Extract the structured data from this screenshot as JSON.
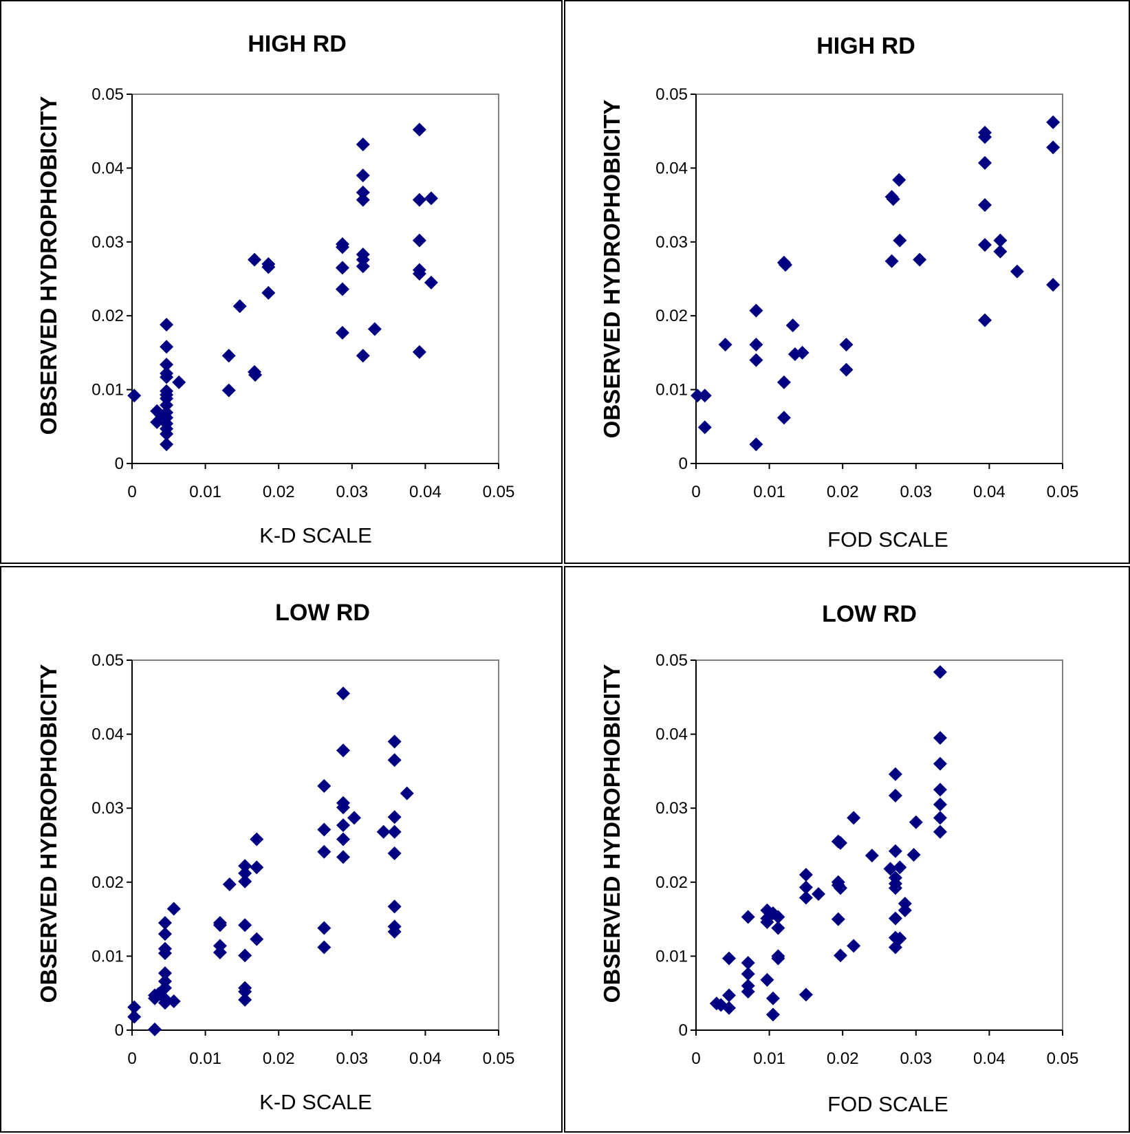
{
  "chart_data": [
    {
      "type": "scatter",
      "title": "HIGH RD",
      "xlabel": "K-D SCALE",
      "ylabel": "OBSERVED HYDROPHOBICITY",
      "xlim": [
        0,
        0.05
      ],
      "ylim": [
        0,
        0.05
      ],
      "xticks": [
        "0",
        "0.01",
        "0.02",
        "0.03",
        "0.04",
        "0.05"
      ],
      "yticks": [
        "0",
        "0.01",
        "0.02",
        "0.03",
        "0.04",
        "0.05"
      ],
      "marker": "diamond",
      "color": "#000080",
      "grid": false,
      "points": [
        [
          0.0003,
          0.0092
        ],
        [
          0.0034,
          0.0071
        ],
        [
          0.0034,
          0.0056
        ],
        [
          0.0039,
          0.0066
        ],
        [
          0.0047,
          0.0188
        ],
        [
          0.0047,
          0.0158
        ],
        [
          0.0047,
          0.0134
        ],
        [
          0.0047,
          0.0122
        ],
        [
          0.0047,
          0.0117
        ],
        [
          0.0047,
          0.0098
        ],
        [
          0.0047,
          0.0093
        ],
        [
          0.0047,
          0.0088
        ],
        [
          0.0047,
          0.0079
        ],
        [
          0.0047,
          0.0069
        ],
        [
          0.0047,
          0.0062
        ],
        [
          0.0047,
          0.0054
        ],
        [
          0.0047,
          0.0047
        ],
        [
          0.0047,
          0.004
        ],
        [
          0.0047,
          0.0026
        ],
        [
          0.0064,
          0.011
        ],
        [
          0.0132,
          0.0146
        ],
        [
          0.0132,
          0.0099
        ],
        [
          0.0147,
          0.0213
        ],
        [
          0.0167,
          0.0276
        ],
        [
          0.0167,
          0.0124
        ],
        [
          0.0168,
          0.012
        ],
        [
          0.0186,
          0.027
        ],
        [
          0.0186,
          0.0266
        ],
        [
          0.0186,
          0.0231
        ],
        [
          0.0287,
          0.0297
        ],
        [
          0.0287,
          0.0293
        ],
        [
          0.0287,
          0.0265
        ],
        [
          0.0287,
          0.0236
        ],
        [
          0.0287,
          0.0177
        ],
        [
          0.0315,
          0.0432
        ],
        [
          0.0315,
          0.039
        ],
        [
          0.0315,
          0.0367
        ],
        [
          0.0315,
          0.0357
        ],
        [
          0.0315,
          0.0283
        ],
        [
          0.0315,
          0.0276
        ],
        [
          0.0315,
          0.0267
        ],
        [
          0.0315,
          0.0146
        ],
        [
          0.0331,
          0.0182
        ],
        [
          0.0392,
          0.0452
        ],
        [
          0.0392,
          0.0357
        ],
        [
          0.0392,
          0.0302
        ],
        [
          0.0392,
          0.0262
        ],
        [
          0.0392,
          0.0257
        ],
        [
          0.0392,
          0.0151
        ],
        [
          0.0408,
          0.0359
        ],
        [
          0.0408,
          0.0245
        ]
      ]
    },
    {
      "type": "scatter",
      "title": "HIGH RD",
      "xlabel": "FOD SCALE",
      "ylabel": "OBSERVED HYDROPHOBICITY",
      "xlim": [
        0,
        0.05
      ],
      "ylim": [
        0,
        0.05
      ],
      "xticks": [
        "0",
        "0.01",
        "0.02",
        "0.03",
        "0.04",
        "0.05"
      ],
      "yticks": [
        "0",
        "0.01",
        "0.02",
        "0.03",
        "0.04",
        "0.05"
      ],
      "marker": "diamond",
      "color": "#000080",
      "grid": false,
      "points": [
        [
          0.0002,
          0.0092
        ],
        [
          0.0012,
          0.0092
        ],
        [
          0.0012,
          0.0049
        ],
        [
          0.004,
          0.0161
        ],
        [
          0.0082,
          0.0207
        ],
        [
          0.0082,
          0.0161
        ],
        [
          0.0082,
          0.014
        ],
        [
          0.0082,
          0.0026
        ],
        [
          0.012,
          0.0272
        ],
        [
          0.0122,
          0.0269
        ],
        [
          0.012,
          0.011
        ],
        [
          0.012,
          0.0062
        ],
        [
          0.0132,
          0.0187
        ],
        [
          0.0135,
          0.0148
        ],
        [
          0.0145,
          0.015
        ],
        [
          0.0205,
          0.0161
        ],
        [
          0.0205,
          0.0127
        ],
        [
          0.0267,
          0.0361
        ],
        [
          0.0269,
          0.0358
        ],
        [
          0.0277,
          0.0384
        ],
        [
          0.0278,
          0.0302
        ],
        [
          0.0267,
          0.0274
        ],
        [
          0.0305,
          0.0276
        ],
        [
          0.0394,
          0.0448
        ],
        [
          0.0394,
          0.0442
        ],
        [
          0.0394,
          0.0407
        ],
        [
          0.0394,
          0.035
        ],
        [
          0.0394,
          0.0296
        ],
        [
          0.0394,
          0.0194
        ],
        [
          0.0415,
          0.0302
        ],
        [
          0.0415,
          0.0287
        ],
        [
          0.0438,
          0.026
        ],
        [
          0.0487,
          0.0462
        ],
        [
          0.0487,
          0.0428
        ],
        [
          0.0487,
          0.0242
        ]
      ]
    },
    {
      "type": "scatter",
      "title": "LOW RD",
      "xlabel": "K-D SCALE",
      "ylabel": "OBSERVED HYDROPHOBICITY",
      "xlim": [
        0,
        0.05
      ],
      "ylim": [
        0,
        0.05
      ],
      "xticks": [
        "0",
        "0.01",
        "0.02",
        "0.03",
        "0.04",
        "0.05"
      ],
      "yticks": [
        "0",
        "0.01",
        "0.02",
        "0.03",
        "0.04",
        "0.05"
      ],
      "marker": "diamond",
      "color": "#000080",
      "grid": false,
      "points": [
        [
          0.0003,
          0.0031
        ],
        [
          0.0003,
          0.0018
        ],
        [
          0.0031,
          0.0047
        ],
        [
          0.0031,
          0.0043
        ],
        [
          0.0031,
          0.0001
        ],
        [
          0.0036,
          0.0049
        ],
        [
          0.0045,
          0.0145
        ],
        [
          0.0045,
          0.013
        ],
        [
          0.0045,
          0.011
        ],
        [
          0.0045,
          0.0104
        ],
        [
          0.0045,
          0.0077
        ],
        [
          0.0045,
          0.0066
        ],
        [
          0.0045,
          0.0057
        ],
        [
          0.0045,
          0.0042
        ],
        [
          0.0045,
          0.0037
        ],
        [
          0.0057,
          0.0164
        ],
        [
          0.0057,
          0.0039
        ],
        [
          0.012,
          0.0145
        ],
        [
          0.012,
          0.0142
        ],
        [
          0.012,
          0.0114
        ],
        [
          0.012,
          0.0105
        ],
        [
          0.0133,
          0.0197
        ],
        [
          0.0154,
          0.0222
        ],
        [
          0.0154,
          0.0212
        ],
        [
          0.0154,
          0.0201
        ],
        [
          0.0154,
          0.0142
        ],
        [
          0.0154,
          0.0101
        ],
        [
          0.0154,
          0.0057
        ],
        [
          0.0154,
          0.0052
        ],
        [
          0.0154,
          0.0041
        ],
        [
          0.017,
          0.0258
        ],
        [
          0.017,
          0.022
        ],
        [
          0.017,
          0.0123
        ],
        [
          0.0262,
          0.033
        ],
        [
          0.0262,
          0.0271
        ],
        [
          0.0262,
          0.0241
        ],
        [
          0.0262,
          0.0138
        ],
        [
          0.0262,
          0.0112
        ],
        [
          0.0288,
          0.0455
        ],
        [
          0.0288,
          0.0378
        ],
        [
          0.0288,
          0.0307
        ],
        [
          0.0288,
          0.0301
        ],
        [
          0.0288,
          0.0277
        ],
        [
          0.0288,
          0.0258
        ],
        [
          0.0288,
          0.0234
        ],
        [
          0.0303,
          0.0287
        ],
        [
          0.0343,
          0.0268
        ],
        [
          0.0358,
          0.039
        ],
        [
          0.0358,
          0.0365
        ],
        [
          0.0358,
          0.0288
        ],
        [
          0.0358,
          0.0268
        ],
        [
          0.0358,
          0.0239
        ],
        [
          0.0358,
          0.0167
        ],
        [
          0.0358,
          0.014
        ],
        [
          0.0358,
          0.0133
        ],
        [
          0.0375,
          0.032
        ]
      ]
    },
    {
      "type": "scatter",
      "title": "LOW RD",
      "xlabel": "FOD SCALE",
      "ylabel": "OBSERVED HYDROPHOBICITY",
      "xlim": [
        0,
        0.05
      ],
      "ylim": [
        0,
        0.05
      ],
      "xticks": [
        "0",
        "0.01",
        "0.02",
        "0.03",
        "0.04",
        "0.05"
      ],
      "yticks": [
        "0",
        "0.01",
        "0.02",
        "0.03",
        "0.04",
        "0.05"
      ],
      "marker": "diamond",
      "color": "#000080",
      "grid": false,
      "points": [
        [
          0.0028,
          0.0036
        ],
        [
          0.0034,
          0.0034
        ],
        [
          0.0045,
          0.0097
        ],
        [
          0.0045,
          0.0047
        ],
        [
          0.0045,
          0.003
        ],
        [
          0.0071,
          0.0153
        ],
        [
          0.0071,
          0.0091
        ],
        [
          0.0071,
          0.0076
        ],
        [
          0.0071,
          0.006
        ],
        [
          0.0071,
          0.0052
        ],
        [
          0.0097,
          0.0162
        ],
        [
          0.0097,
          0.0151
        ],
        [
          0.0097,
          0.0146
        ],
        [
          0.0097,
          0.0068
        ],
        [
          0.0105,
          0.0158
        ],
        [
          0.0105,
          0.0043
        ],
        [
          0.0105,
          0.0021
        ],
        [
          0.0112,
          0.0153
        ],
        [
          0.0112,
          0.0138
        ],
        [
          0.0112,
          0.01
        ],
        [
          0.0112,
          0.0097
        ],
        [
          0.015,
          0.021
        ],
        [
          0.015,
          0.0193
        ],
        [
          0.015,
          0.0179
        ],
        [
          0.015,
          0.0048
        ],
        [
          0.0167,
          0.0184
        ],
        [
          0.0194,
          0.0255
        ],
        [
          0.0194,
          0.02
        ],
        [
          0.0194,
          0.0196
        ],
        [
          0.0194,
          0.015
        ],
        [
          0.0197,
          0.0253
        ],
        [
          0.0197,
          0.0192
        ],
        [
          0.0197,
          0.0101
        ],
        [
          0.0215,
          0.0287
        ],
        [
          0.0215,
          0.0114
        ],
        [
          0.024,
          0.0236
        ],
        [
          0.0265,
          0.0218
        ],
        [
          0.0272,
          0.0346
        ],
        [
          0.0272,
          0.0317
        ],
        [
          0.0272,
          0.0242
        ],
        [
          0.0272,
          0.0206
        ],
        [
          0.0272,
          0.0198
        ],
        [
          0.0272,
          0.0192
        ],
        [
          0.0272,
          0.0151
        ],
        [
          0.0272,
          0.0125
        ],
        [
          0.0272,
          0.0112
        ],
        [
          0.0278,
          0.022
        ],
        [
          0.0278,
          0.0124
        ],
        [
          0.0285,
          0.0171
        ],
        [
          0.0285,
          0.0162
        ],
        [
          0.0297,
          0.0237
        ],
        [
          0.03,
          0.0281
        ],
        [
          0.0333,
          0.0484
        ],
        [
          0.0333,
          0.0395
        ],
        [
          0.0333,
          0.036
        ],
        [
          0.0333,
          0.0325
        ],
        [
          0.0333,
          0.0305
        ],
        [
          0.0333,
          0.0287
        ],
        [
          0.0333,
          0.0268
        ]
      ]
    }
  ]
}
